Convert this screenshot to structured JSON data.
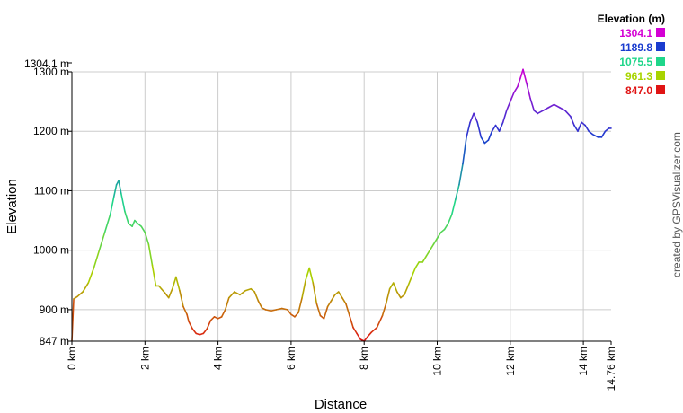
{
  "chart_data": {
    "type": "line",
    "title": "",
    "xlabel": "Distance",
    "ylabel": "Elevation",
    "xlim": [
      0,
      14.76
    ],
    "ylim": [
      847,
      1304.1
    ],
    "grid": true,
    "x_ticks": [
      {
        "value": 0,
        "label": "0 km"
      },
      {
        "value": 2,
        "label": "2 km"
      },
      {
        "value": 4,
        "label": "4 km"
      },
      {
        "value": 6,
        "label": "6 km"
      },
      {
        "value": 8,
        "label": "8 km"
      },
      {
        "value": 10,
        "label": "10 km"
      },
      {
        "value": 12,
        "label": "12 km"
      },
      {
        "value": 14,
        "label": "14 km"
      },
      {
        "value": 14.76,
        "label": "14.76 km"
      }
    ],
    "y_ticks": [
      {
        "value": 847,
        "label": "847 m"
      },
      {
        "value": 900,
        "label": "900 m"
      },
      {
        "value": 1000,
        "label": "1000 m"
      },
      {
        "value": 1100,
        "label": "1100 m"
      },
      {
        "value": 1200,
        "label": "1200 m"
      },
      {
        "value": 1300,
        "label": "1300 m"
      }
    ],
    "y_max_label": "1304.1 m",
    "legend": {
      "title": "Elevation (m)",
      "position": "top-right",
      "entries": [
        {
          "label": "1304.1",
          "value": 1304.1,
          "color": "#d400d4"
        },
        {
          "label": "1189.8",
          "value": 1189.8,
          "color": "#1a3ccf"
        },
        {
          "label": "1075.5",
          "value": 1075.5,
          "color": "#1fd68a"
        },
        {
          "label": "961.3",
          "value": 961.3,
          "color": "#a8d400"
        },
        {
          "label": "847.0",
          "value": 847.0,
          "color": "#e01414"
        }
      ]
    },
    "series": [
      {
        "name": "Elevation",
        "x": [
          0,
          0.05,
          0.15,
          0.3,
          0.45,
          0.6,
          0.75,
          0.9,
          1.05,
          1.15,
          1.22,
          1.28,
          1.35,
          1.45,
          1.55,
          1.65,
          1.72,
          1.8,
          1.9,
          2.0,
          2.1,
          2.2,
          2.3,
          2.38,
          2.45,
          2.55,
          2.65,
          2.75,
          2.85,
          2.95,
          3.05,
          3.15,
          3.2,
          3.3,
          3.4,
          3.5,
          3.6,
          3.7,
          3.8,
          3.9,
          4.0,
          4.1,
          4.2,
          4.3,
          4.45,
          4.6,
          4.75,
          4.9,
          5.0,
          5.1,
          5.2,
          5.3,
          5.45,
          5.6,
          5.75,
          5.9,
          6.0,
          6.1,
          6.2,
          6.3,
          6.4,
          6.5,
          6.6,
          6.7,
          6.8,
          6.9,
          7.0,
          7.1,
          7.2,
          7.3,
          7.4,
          7.5,
          7.6,
          7.7,
          7.8,
          7.9,
          8.0,
          8.1,
          8.2,
          8.35,
          8.5,
          8.6,
          8.7,
          8.8,
          8.9,
          9.0,
          9.1,
          9.2,
          9.3,
          9.4,
          9.5,
          9.6,
          9.7,
          9.8,
          9.9,
          10.0,
          10.1,
          10.2,
          10.3,
          10.4,
          10.5,
          10.6,
          10.7,
          10.8,
          10.9,
          11.0,
          11.1,
          11.2,
          11.3,
          11.4,
          11.5,
          11.6,
          11.7,
          11.8,
          11.9,
          12.0,
          12.1,
          12.2,
          12.28,
          12.35,
          12.45,
          12.55,
          12.65,
          12.75,
          12.9,
          13.05,
          13.2,
          13.35,
          13.5,
          13.65,
          13.75,
          13.85,
          13.95,
          14.05,
          14.15,
          14.25,
          14.4,
          14.5,
          14.6,
          14.7,
          14.76
        ],
        "y": [
          847,
          918,
          922,
          930,
          945,
          970,
          1000,
          1030,
          1060,
          1090,
          1110,
          1117,
          1095,
          1065,
          1045,
          1040,
          1050,
          1045,
          1040,
          1030,
          1010,
          975,
          940,
          940,
          935,
          928,
          920,
          935,
          955,
          932,
          905,
          892,
          880,
          868,
          860,
          858,
          860,
          868,
          882,
          888,
          885,
          888,
          900,
          920,
          930,
          925,
          932,
          935,
          930,
          915,
          903,
          900,
          898,
          900,
          902,
          900,
          892,
          888,
          895,
          920,
          950,
          970,
          945,
          910,
          890,
          885,
          905,
          915,
          925,
          930,
          920,
          910,
          890,
          870,
          860,
          850,
          847,
          855,
          862,
          870,
          890,
          910,
          935,
          945,
          930,
          920,
          925,
          940,
          955,
          970,
          980,
          980,
          990,
          1000,
          1010,
          1020,
          1030,
          1035,
          1045,
          1060,
          1085,
          1110,
          1145,
          1190,
          1215,
          1230,
          1215,
          1190,
          1180,
          1185,
          1200,
          1210,
          1200,
          1215,
          1235,
          1250,
          1265,
          1275,
          1290,
          1304.1,
          1280,
          1255,
          1235,
          1230,
          1235,
          1240,
          1245,
          1240,
          1235,
          1225,
          1210,
          1200,
          1215,
          1210,
          1200,
          1195,
          1190,
          1190,
          1200,
          1205,
          1205
        ]
      }
    ]
  },
  "credit": "created by GPSVisualizer.com"
}
